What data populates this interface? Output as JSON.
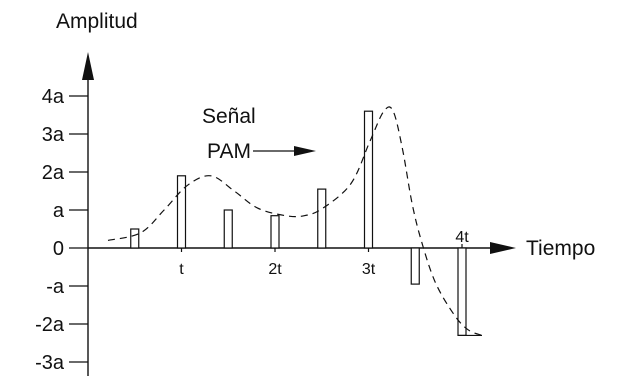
{
  "labels": {
    "y_axis_title": "Amplitud",
    "x_axis_title": "Tiempo",
    "signal_line1": "Señal",
    "signal_line2": "PAM"
  },
  "y_ticks": [
    "4a",
    "3a",
    "2a",
    "a",
    "0",
    "-a",
    "-2a",
    "-3a"
  ],
  "x_ticks": [
    "t",
    "2t",
    "3t",
    "4t"
  ],
  "chart_data": {
    "type": "diagram",
    "y_tick_values": [
      4,
      3,
      2,
      1,
      0,
      -1,
      -2,
      -3
    ],
    "x_tick_values": [
      1,
      2,
      3,
      4
    ],
    "pulses": [
      {
        "t": 0.5,
        "amplitude": 0.5
      },
      {
        "t": 1.0,
        "amplitude": 1.9
      },
      {
        "t": 1.5,
        "amplitude": 1.0
      },
      {
        "t": 2.0,
        "amplitude": 0.85
      },
      {
        "t": 2.5,
        "amplitude": 1.55
      },
      {
        "t": 3.0,
        "amplitude": 3.6
      },
      {
        "t": 3.5,
        "amplitude": -0.95
      },
      {
        "t": 4.0,
        "amplitude": -2.3
      }
    ],
    "envelope": [
      [
        0.0,
        0.2
      ],
      [
        0.35,
        0.4
      ],
      [
        0.6,
        1.0
      ],
      [
        0.85,
        1.65
      ],
      [
        1.1,
        1.9
      ],
      [
        1.35,
        1.5
      ],
      [
        1.6,
        1.05
      ],
      [
        1.9,
        0.85
      ],
      [
        2.1,
        0.85
      ],
      [
        2.3,
        1.05
      ],
      [
        2.6,
        1.7
      ],
      [
        2.8,
        2.8
      ],
      [
        2.95,
        3.6
      ],
      [
        3.05,
        3.6
      ],
      [
        3.15,
        2.6
      ],
      [
        3.25,
        1.2
      ],
      [
        3.35,
        0.2
      ],
      [
        3.5,
        -0.9
      ],
      [
        3.7,
        -1.75
      ],
      [
        3.85,
        -2.15
      ],
      [
        4.0,
        -2.3
      ]
    ]
  }
}
